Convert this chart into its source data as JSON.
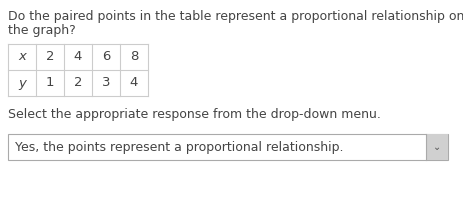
{
  "question_line1": "Do the paired points in the table represent a proportional relationship on",
  "question_line2": "the graph?",
  "table_x_label": "x",
  "table_y_label": "y",
  "table_x_values": [
    "2",
    "4",
    "6",
    "8"
  ],
  "table_y_values": [
    "1",
    "2",
    "3",
    "4"
  ],
  "instruction_text": "Select the appropriate response from the drop-down menu.",
  "dropdown_text": "Yes, the points represent a proportional relationship.",
  "bg_color": "#ffffff",
  "text_color": "#444444",
  "table_border_color": "#cccccc",
  "dropdown_border_color": "#aaaaaa",
  "dropdown_bg_color": "#ffffff",
  "dropdown_arrow_bg": "#d0d0d0",
  "font_size_question": 9.0,
  "font_size_table": 9.5,
  "font_size_instruction": 9.0,
  "font_size_dropdown": 9.0,
  "font_size_arrow": 7.0
}
